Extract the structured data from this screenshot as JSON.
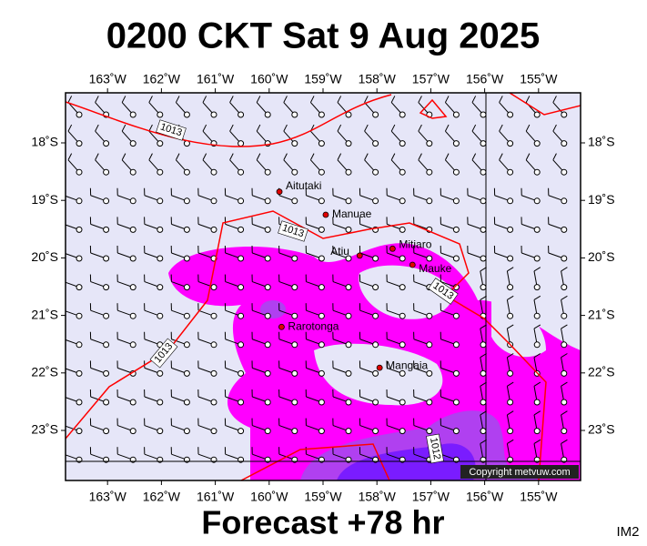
{
  "title": "0200 CKT Sat 9 Aug 2025",
  "map": {
    "lon_range": [
      -163.78,
      -154.22
    ],
    "lat_range": [
      -17.13,
      -23.87
    ],
    "lon_ticks": [
      {
        "value": -163,
        "label": "163˚W"
      },
      {
        "value": -162,
        "label": "162˚W"
      },
      {
        "value": -161,
        "label": "161˚W"
      },
      {
        "value": -160,
        "label": "160˚W"
      },
      {
        "value": -159,
        "label": "159˚W"
      },
      {
        "value": -158,
        "label": "158˚W"
      },
      {
        "value": -157,
        "label": "157˚W"
      },
      {
        "value": -156,
        "label": "156˚W"
      },
      {
        "value": -155,
        "label": "155˚W"
      }
    ],
    "lat_ticks": [
      {
        "value": -18,
        "label": "18˚S"
      },
      {
        "value": -19,
        "label": "19˚S"
      },
      {
        "value": -20,
        "label": "20˚S"
      },
      {
        "value": -21,
        "label": "21˚S"
      },
      {
        "value": -22,
        "label": "22˚S"
      },
      {
        "value": -23,
        "label": "23˚S"
      }
    ],
    "places": [
      {
        "name": "Aitutaki",
        "lon": -159.81,
        "lat": -18.85
      },
      {
        "name": "Manuae",
        "lon": -158.95,
        "lat": -19.25
      },
      {
        "name": "Atiu",
        "lon": -158.32,
        "lat": -19.96
      },
      {
        "name": "Mitiaro",
        "lon": -157.71,
        "lat": -19.84
      },
      {
        "name": "Mauke",
        "lon": -157.34,
        "lat": -20.12
      },
      {
        "name": "Rarotonga",
        "lon": -159.77,
        "lat": -21.2
      },
      {
        "name": "Mangaia",
        "lon": -157.95,
        "lat": -21.91
      }
    ],
    "isobars": [
      1013,
      1013,
      1013,
      1013,
      1012
    ],
    "copyright": "Copyright metvuw.com"
  },
  "footer": "Forecast +78 hr",
  "image_id": "IM2"
}
